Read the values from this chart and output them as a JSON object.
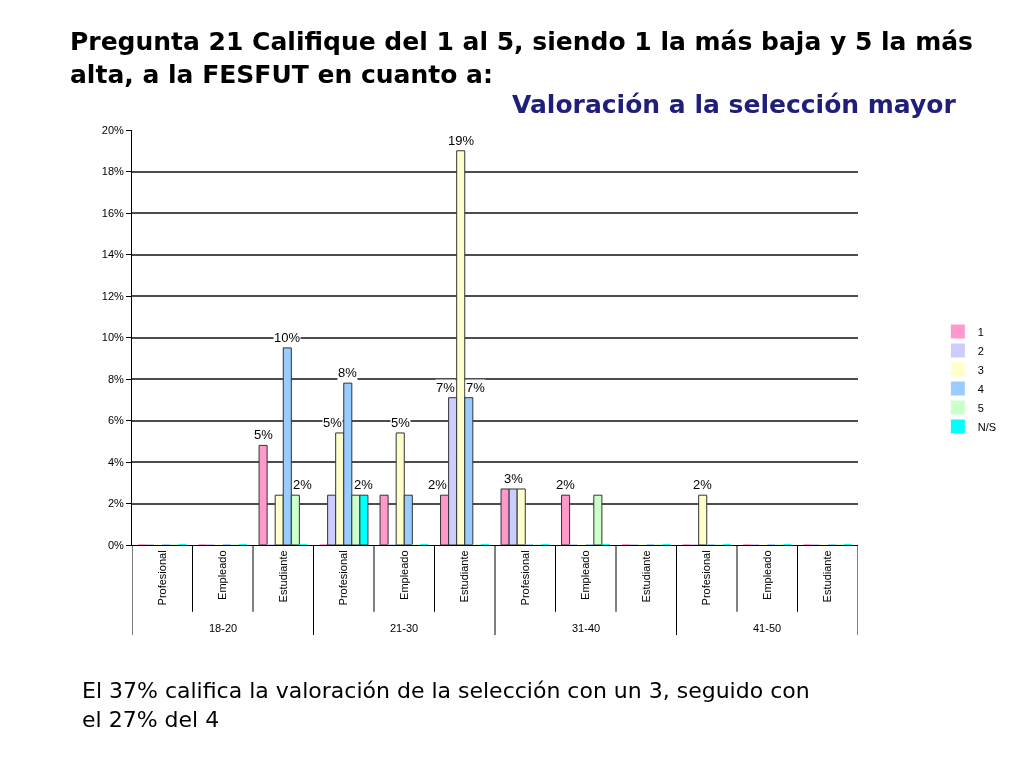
{
  "chart_data": {
    "type": "bar",
    "title": "Pregunta 21 Califique del 1 al 5, siendo 1 la más baja y 5 la más alta, a la FESFUT en cuanto a:",
    "subtitle": "Valoración a la selección mayor",
    "categories": [
      "Profesional",
      "Empleado",
      "Estudiante",
      "Profesional",
      "Empleado",
      "Estudiante",
      "Profesional",
      "Empleado",
      "Estudiante",
      "Profesional",
      "Empleado",
      "Estudiante"
    ],
    "series": [
      {
        "name": "1",
        "color": "#ff99cc",
        "values": [
          0,
          0,
          4.8,
          0,
          2.4,
          2.4,
          2.7,
          2.4,
          0,
          0,
          0,
          0
        ],
        "value_labels": [
          null,
          null,
          "5%",
          null,
          null,
          "2%",
          null,
          "2%",
          null,
          null,
          null,
          null
        ]
      },
      {
        "name": "2",
        "color": "#ccccff",
        "values": [
          0,
          0,
          0,
          2.4,
          0,
          7.1,
          2.7,
          0,
          0,
          0,
          0,
          0
        ],
        "value_labels": [
          null,
          null,
          null,
          null,
          null,
          "7%",
          "3%",
          null,
          null,
          null,
          null,
          null
        ]
      },
      {
        "name": "3",
        "color": "#ffffcc",
        "values": [
          0,
          0,
          2.4,
          5.4,
          5.4,
          19.0,
          2.7,
          0,
          0,
          2.4,
          0,
          0
        ],
        "value_labels": [
          null,
          null,
          null,
          "5%",
          "5%",
          "19%",
          null,
          null,
          null,
          "2%",
          null,
          null
        ]
      },
      {
        "name": "4",
        "color": "#99ccff",
        "values": [
          0,
          0,
          9.5,
          7.8,
          2.4,
          7.1,
          0,
          0,
          0,
          0,
          0,
          0
        ],
        "value_labels": [
          null,
          null,
          "10%",
          "8%",
          null,
          "7%",
          null,
          null,
          null,
          null,
          null,
          null
        ]
      },
      {
        "name": "5",
        "color": "#ccffcc",
        "values": [
          0,
          0,
          2.4,
          2.4,
          0,
          0,
          0,
          2.4,
          0,
          0,
          0,
          0
        ],
        "value_labels": [
          null,
          null,
          "2%",
          null,
          null,
          null,
          null,
          null,
          null,
          null,
          null,
          null
        ]
      },
      {
        "name": "N/S",
        "color": "#00ffff",
        "values": [
          0,
          0,
          0,
          2.4,
          0,
          0,
          0,
          0,
          0,
          0,
          0,
          0
        ],
        "value_labels": [
          null,
          null,
          null,
          "2%",
          null,
          null,
          null,
          null,
          null,
          null,
          null,
          null
        ]
      }
    ],
    "ylim": [
      0,
      20
    ],
    "yticks": [
      {
        "value": 0,
        "label": "0%"
      },
      {
        "value": 2,
        "label": "2%"
      },
      {
        "value": 4,
        "label": "4%"
      },
      {
        "value": 6,
        "label": "6%"
      },
      {
        "value": 8,
        "label": "8%"
      },
      {
        "value": 10,
        "label": "10%"
      },
      {
        "value": 12,
        "label": "12%"
      },
      {
        "value": 14,
        "label": "14%"
      },
      {
        "value": 16,
        "label": "16%"
      },
      {
        "value": 18,
        "label": "18%"
      },
      {
        "value": 20,
        "label": "20%"
      }
    ],
    "grid": "y",
    "legend": "right",
    "annotations": [
      "18-20",
      "21-30",
      "31-40",
      "41-50",
      "El 37% califica la valoración de la selección con un 3, seguido con el 27% del 4"
    ]
  }
}
